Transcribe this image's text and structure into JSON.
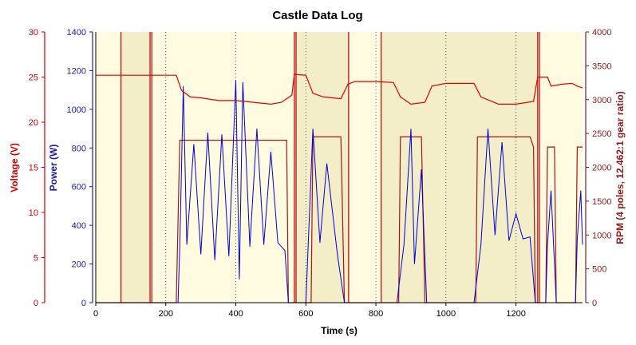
{
  "chart_data": {
    "type": "line",
    "title": "Castle Data Log",
    "xlabel": "Time (s)",
    "xlim": [
      0,
      1390
    ],
    "x_ticks": [
      0,
      200,
      400,
      600,
      800,
      1000,
      1200
    ],
    "axes": {
      "voltage": {
        "label": "Voltage (V)",
        "lim": [
          0,
          30
        ],
        "ticks": [
          0,
          5,
          10,
          15,
          20,
          25,
          30
        ],
        "color": "#cc0000"
      },
      "power": {
        "label": "Power (W)",
        "lim": [
          0,
          1400
        ],
        "ticks": [
          0,
          200,
          400,
          600,
          800,
          1000,
          1200,
          1400
        ],
        "color": "#1a1aa6"
      },
      "rpm": {
        "label": "RPM (4 poles, 12.462:1 gear ratio)",
        "lim": [
          0,
          4000
        ],
        "ticks": [
          0,
          500,
          1000,
          1500,
          2000,
          2500,
          3000,
          3500,
          4000
        ],
        "color": "#8b1a1a"
      }
    },
    "grid": "dotted vertical",
    "background": {
      "plot": "#fffbe0",
      "bands": "#f3eec8"
    },
    "colors": {
      "voltage": "#e00000",
      "power": "#0000dd",
      "rpm": "#a01818",
      "markers": "#c02020"
    },
    "marker_lines": [
      72,
      155,
      160,
      567,
      572,
      722,
      815,
      1262,
      1267
    ],
    "voltage_levels": [
      {
        "t0": 0,
        "t1": 230,
        "v": 25.2
      },
      {
        "t0": 240,
        "t1": 540,
        "v": 22.3
      },
      {
        "t0": 570,
        "t1": 605,
        "v": 25.2
      },
      {
        "t0": 630,
        "t1": 700,
        "v": 22.5
      },
      {
        "t0": 740,
        "t1": 850,
        "v": 24.5
      },
      {
        "t0": 880,
        "t1": 940,
        "v": 22
      },
      {
        "t0": 950,
        "t1": 1080,
        "v": 24.3
      },
      {
        "t0": 1110,
        "t1": 1250,
        "v": 22
      },
      {
        "t0": 1270,
        "t1": 1290,
        "v": 25
      },
      {
        "t0": 1300,
        "t1": 1390,
        "v": 24
      }
    ],
    "series": [
      {
        "name": "Voltage (V)",
        "axis": "voltage",
        "points": [
          [
            0,
            25.2
          ],
          [
            230,
            25.2
          ],
          [
            245,
            23.5
          ],
          [
            270,
            22.8
          ],
          [
            300,
            22.7
          ],
          [
            350,
            22.4
          ],
          [
            400,
            22.4
          ],
          [
            450,
            22.2
          ],
          [
            500,
            22.0
          ],
          [
            530,
            22.2
          ],
          [
            545,
            22.6
          ],
          [
            560,
            23.0
          ],
          [
            567,
            25.3
          ],
          [
            600,
            25.2
          ],
          [
            620,
            23.2
          ],
          [
            650,
            22.8
          ],
          [
            700,
            22.6
          ],
          [
            720,
            24.2
          ],
          [
            740,
            24.5
          ],
          [
            800,
            24.5
          ],
          [
            850,
            24.4
          ],
          [
            870,
            22.8
          ],
          [
            900,
            22.0
          ],
          [
            940,
            22.2
          ],
          [
            960,
            24.0
          ],
          [
            1000,
            24.3
          ],
          [
            1080,
            24.3
          ],
          [
            1100,
            22.8
          ],
          [
            1150,
            22.0
          ],
          [
            1200,
            22.0
          ],
          [
            1250,
            22.3
          ],
          [
            1262,
            25.0
          ],
          [
            1290,
            25.0
          ],
          [
            1300,
            24.0
          ],
          [
            1330,
            24.2
          ],
          [
            1360,
            24.3
          ],
          [
            1375,
            24.0
          ],
          [
            1390,
            23.8
          ]
        ]
      },
      {
        "name": "Power (W)",
        "axis": "power",
        "points": [
          [
            0,
            0
          ],
          [
            235,
            0
          ],
          [
            240,
            290
          ],
          [
            250,
            1120
          ],
          [
            260,
            300
          ],
          [
            280,
            820
          ],
          [
            300,
            250
          ],
          [
            320,
            880
          ],
          [
            340,
            220
          ],
          [
            360,
            870
          ],
          [
            380,
            240
          ],
          [
            400,
            1150
          ],
          [
            410,
            120
          ],
          [
            420,
            1140
          ],
          [
            440,
            290
          ],
          [
            460,
            900
          ],
          [
            480,
            300
          ],
          [
            500,
            780
          ],
          [
            520,
            310
          ],
          [
            540,
            270
          ],
          [
            550,
            0
          ],
          [
            600,
            0
          ],
          [
            620,
            900
          ],
          [
            640,
            310
          ],
          [
            660,
            720
          ],
          [
            690,
            250
          ],
          [
            710,
            0
          ],
          [
            860,
            0
          ],
          [
            880,
            300
          ],
          [
            900,
            900
          ],
          [
            910,
            200
          ],
          [
            930,
            690
          ],
          [
            945,
            0
          ],
          [
            1080,
            0
          ],
          [
            1100,
            300
          ],
          [
            1120,
            900
          ],
          [
            1140,
            350
          ],
          [
            1160,
            830
          ],
          [
            1180,
            320
          ],
          [
            1200,
            460
          ],
          [
            1220,
            330
          ],
          [
            1240,
            340
          ],
          [
            1255,
            0
          ],
          [
            1285,
            0
          ],
          [
            1290,
            300
          ],
          [
            1300,
            580
          ],
          [
            1315,
            0
          ],
          [
            1370,
            0
          ],
          [
            1375,
            330
          ],
          [
            1385,
            580
          ],
          [
            1390,
            300
          ]
        ]
      },
      {
        "name": "RPM",
        "axis": "rpm",
        "points": [
          [
            0,
            0
          ],
          [
            230,
            0
          ],
          [
            240,
            2400
          ],
          [
            545,
            2400
          ],
          [
            550,
            0
          ],
          [
            615,
            0
          ],
          [
            620,
            2450
          ],
          [
            700,
            2450
          ],
          [
            710,
            0
          ],
          [
            865,
            0
          ],
          [
            870,
            2450
          ],
          [
            930,
            2450
          ],
          [
            940,
            0
          ],
          [
            1085,
            0
          ],
          [
            1090,
            2450
          ],
          [
            1240,
            2450
          ],
          [
            1250,
            2300
          ],
          [
            1255,
            0
          ],
          [
            1285,
            0
          ],
          [
            1290,
            2300
          ],
          [
            1310,
            2300
          ],
          [
            1315,
            0
          ],
          [
            1370,
            0
          ],
          [
            1375,
            2300
          ],
          [
            1390,
            2300
          ]
        ]
      }
    ]
  }
}
